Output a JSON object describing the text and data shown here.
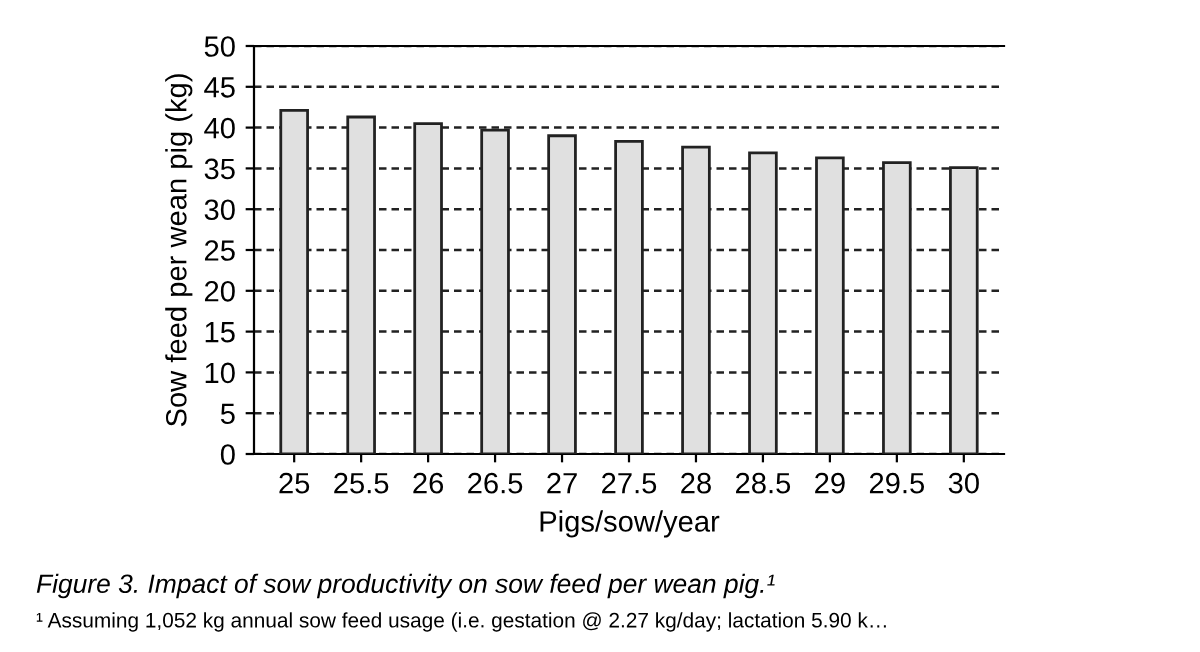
{
  "chart_data": {
    "type": "bar",
    "title": "Figure 3. Impact of sow productivity on sow feed per wean pig.¹",
    "xlabel": "Pigs/sow/year",
    "ylabel": "Sow feed per wean pig (kg)",
    "categories": [
      "25",
      "25.5",
      "26",
      "26.5",
      "27",
      "27.5",
      "28",
      "28.5",
      "29",
      "29.5",
      "30"
    ],
    "values": [
      42.1,
      41.3,
      40.5,
      39.7,
      39.0,
      38.3,
      37.6,
      36.9,
      36.3,
      35.7,
      35.1
    ],
    "color": "#e0e0e0",
    "ylim": [
      0,
      50
    ],
    "yticks": [
      0,
      5,
      10,
      15,
      20,
      25,
      30,
      35,
      40,
      45,
      50
    ],
    "grid": "y",
    "annotations": [
      "¹ Assuming 1,052 kg annual sow feed usage (i.e. gestation @ 2.27 kg/day; lactation 5.90 k…"
    ]
  }
}
